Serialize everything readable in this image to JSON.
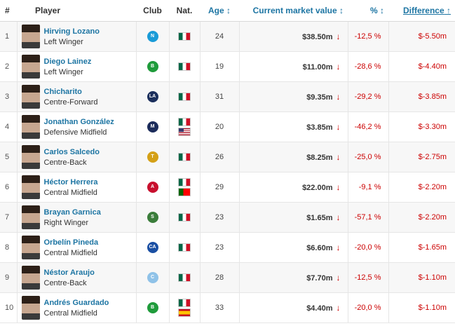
{
  "headers": {
    "rank": "#",
    "player": "Player",
    "club": "Club",
    "nat": "Nat.",
    "age": "Age",
    "market_value": "Current market value",
    "pct": "%",
    "difference": "Difference"
  },
  "sort_icons": {
    "age": "↕",
    "market_value": "↕",
    "pct": "↕",
    "difference": "↑"
  },
  "colors": {
    "link": "#1d75a3",
    "negative": "#cc0000"
  },
  "rows": [
    {
      "rank": "1",
      "name": "Hirving Lozano",
      "position": "Left Winger",
      "club_icon": "napoli-crest-icon",
      "club_abbr": "N",
      "club_color": "#1a9bd7",
      "nats": [
        "mx"
      ],
      "age": "24",
      "market_value": "$38.50m",
      "pct": "-12,5 %",
      "difference": "$-5.50m"
    },
    {
      "rank": "2",
      "name": "Diego Lainez",
      "position": "Left Winger",
      "club_icon": "betis-crest-icon",
      "club_abbr": "B",
      "club_color": "#1f9b3b",
      "nats": [
        "mx"
      ],
      "age": "19",
      "market_value": "$11.00m",
      "pct": "-28,6 %",
      "difference": "$-4.40m"
    },
    {
      "rank": "3",
      "name": "Chicharito",
      "position": "Centre-Forward",
      "club_icon": "la-galaxy-crest-icon",
      "club_abbr": "LA",
      "club_color": "#1b2f5c",
      "nats": [
        "mx"
      ],
      "age": "31",
      "market_value": "$9.35m",
      "pct": "-29,2 %",
      "difference": "$-3.85m"
    },
    {
      "rank": "4",
      "name": "Jonathan González",
      "position": "Defensive Midfield",
      "club_icon": "monterrey-crest-icon",
      "club_abbr": "M",
      "club_color": "#1c2c5b",
      "nats": [
        "mx",
        "us"
      ],
      "age": "20",
      "market_value": "$3.85m",
      "pct": "-46,2 %",
      "difference": "$-3.30m"
    },
    {
      "rank": "5",
      "name": "Carlos Salcedo",
      "position": "Centre-Back",
      "club_icon": "tigres-crest-icon",
      "club_abbr": "T",
      "club_color": "#d4a017",
      "nats": [
        "mx"
      ],
      "age": "26",
      "market_value": "$8.25m",
      "pct": "-25,0 %",
      "difference": "$-2.75m"
    },
    {
      "rank": "6",
      "name": "Héctor Herrera",
      "position": "Central Midfield",
      "club_icon": "atletico-crest-icon",
      "club_abbr": "A",
      "club_color": "#c8102e",
      "nats": [
        "mx",
        "pt"
      ],
      "age": "29",
      "market_value": "$22.00m",
      "pct": "-9,1 %",
      "difference": "$-2.20m"
    },
    {
      "rank": "7",
      "name": "Brayan Garnica",
      "position": "Right Winger",
      "club_icon": "santos-crest-icon",
      "club_abbr": "S",
      "club_color": "#3b7d3b",
      "nats": [
        "mx"
      ],
      "age": "23",
      "market_value": "$1.65m",
      "pct": "-57,1 %",
      "difference": "$-2.20m"
    },
    {
      "rank": "8",
      "name": "Orbelín Pineda",
      "position": "Central Midfield",
      "club_icon": "cruz-azul-crest-icon",
      "club_abbr": "CA",
      "club_color": "#1a4fa3",
      "nats": [
        "mx"
      ],
      "age": "23",
      "market_value": "$6.60m",
      "pct": "-20,0 %",
      "difference": "$-1.65m"
    },
    {
      "rank": "9",
      "name": "Néstor Araujo",
      "position": "Centre-Back",
      "club_icon": "celta-crest-icon",
      "club_abbr": "C",
      "club_color": "#8fc2e8",
      "nats": [
        "mx"
      ],
      "age": "28",
      "market_value": "$7.70m",
      "pct": "-12,5 %",
      "difference": "$-1.10m"
    },
    {
      "rank": "10",
      "name": "Andrés Guardado",
      "position": "Central Midfield",
      "club_icon": "betis-crest-icon",
      "club_abbr": "B",
      "club_color": "#1f9b3b",
      "nats": [
        "mx",
        "es"
      ],
      "age": "33",
      "market_value": "$4.40m",
      "pct": "-20,0 %",
      "difference": "$-1.10m"
    }
  ]
}
